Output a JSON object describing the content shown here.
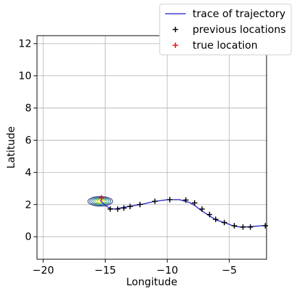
{
  "chart_data": {
    "type": "line",
    "title": "",
    "xlabel": "Longitude",
    "ylabel": "Latitude",
    "xlim": [
      -20.5,
      -2.0
    ],
    "ylim": [
      -1.4,
      12.5
    ],
    "xticks": [
      -20,
      -15,
      -10,
      -5
    ],
    "xtick_labels": [
      "−20",
      "−15",
      "−10",
      "−5"
    ],
    "yticks": [
      0,
      2,
      4,
      6,
      8,
      10,
      12
    ],
    "ytick_labels": [
      "0",
      "2",
      "4",
      "6",
      "8",
      "10",
      "12"
    ],
    "grid": true,
    "legend_position": "top-right",
    "series": [
      {
        "name": "trace of trajectory",
        "kind": "line",
        "color": "#3333cc",
        "x": [
          -15.4,
          -15.0,
          -14.6,
          -14.2,
          -13.8,
          -13.3,
          -12.8,
          -12.0,
          -11.0,
          -10.0,
          -9.0,
          -8.2,
          -7.8,
          -7.3,
          -6.7,
          -6.1,
          -5.3,
          -4.6,
          -4.0,
          -3.4,
          -2.9,
          -2.0
        ],
        "y": [
          2.25,
          1.95,
          1.75,
          1.72,
          1.78,
          1.85,
          1.92,
          2.02,
          2.2,
          2.3,
          2.3,
          2.12,
          1.95,
          1.65,
          1.35,
          1.05,
          0.85,
          0.65,
          0.6,
          0.62,
          0.65,
          0.7
        ]
      },
      {
        "name": "previous locations",
        "kind": "scatter",
        "marker": "+",
        "color": "#000000",
        "x": [
          -14.6,
          -14.0,
          -13.5,
          -13.0,
          -12.2,
          -11.0,
          -9.8,
          -8.5,
          -7.8,
          -7.2,
          -6.6,
          -6.1,
          -5.4,
          -4.6,
          -3.9,
          -3.3,
          -2.1
        ],
        "y": [
          1.72,
          1.72,
          1.78,
          1.88,
          2.0,
          2.2,
          2.3,
          2.28,
          2.1,
          1.72,
          1.38,
          1.08,
          0.88,
          0.68,
          0.6,
          0.6,
          0.68
        ]
      },
      {
        "name": "true location",
        "kind": "scatter",
        "marker": "+",
        "color": "#ff0000",
        "x": [
          -15.3
        ],
        "y": [
          2.42
        ]
      }
    ],
    "density_contour": {
      "center": [
        -15.4,
        2.2
      ],
      "half_widths": [
        1.0,
        0.3
      ],
      "levels": [
        1.0,
        0.85,
        0.7,
        0.55,
        0.4,
        0.25
      ],
      "colors": [
        "#3f3f8a",
        "#3a6a9e",
        "#3a8f9a",
        "#4fb07a",
        "#a6d04a",
        "#f0e020"
      ]
    }
  }
}
